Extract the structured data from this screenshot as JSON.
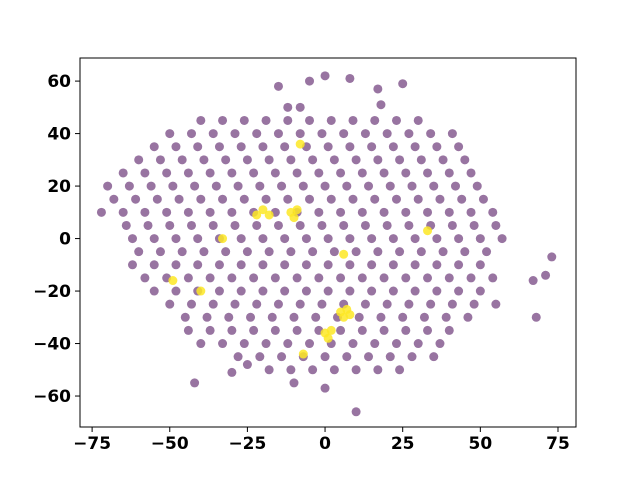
{
  "chart_data": {
    "type": "scatter",
    "xlim": [
      -78.9,
      80.8
    ],
    "ylim": [
      -71.8,
      68.8
    ],
    "xticks": [
      {
        "value": -75,
        "label": "−75"
      },
      {
        "value": -50,
        "label": "−50"
      },
      {
        "value": -25,
        "label": "−25"
      },
      0,
      25,
      50,
      75
    ],
    "yticks": [
      {
        "value": -60,
        "label": "−60"
      },
      {
        "value": -40,
        "label": "−40"
      },
      {
        "value": -20,
        "label": "−20"
      },
      0,
      20,
      40,
      60
    ],
    "series": [
      {
        "color": "#440154",
        "alpha": 0.55,
        "x": [
          -40,
          -33,
          -26,
          -19,
          -12,
          -5,
          2,
          9,
          16,
          23,
          30,
          -50,
          -43,
          -36,
          -29,
          -22,
          -15,
          -8,
          -1,
          6,
          13,
          20,
          27,
          34,
          41,
          -55,
          -48,
          -41,
          -34,
          -27,
          -20,
          -13,
          -6,
          1,
          8,
          15,
          22,
          29,
          36,
          43,
          -60,
          -53,
          -46,
          -39,
          -32,
          -25,
          -18,
          -11,
          -4,
          3,
          10,
          17,
          24,
          31,
          38,
          45,
          -65,
          -58,
          -51,
          -44,
          -37,
          -30,
          -23,
          -16,
          -9,
          -2,
          5,
          12,
          19,
          26,
          33,
          40,
          47,
          -70,
          -63,
          -56,
          -49,
          -42,
          -35,
          -28,
          -21,
          -14,
          -7,
          0,
          7,
          14,
          21,
          28,
          35,
          42,
          49,
          -68,
          -61,
          -54,
          -47,
          -40,
          -33,
          -26,
          -19,
          -12,
          -5,
          2,
          9,
          16,
          23,
          30,
          37,
          44,
          51,
          -72,
          -65,
          -58,
          -51,
          -44,
          -37,
          -30,
          -23,
          -16,
          -9,
          -2,
          5,
          12,
          19,
          26,
          33,
          40,
          47,
          54,
          -64,
          -57,
          -50,
          -43,
          -36,
          -29,
          -22,
          -15,
          -8,
          -1,
          6,
          13,
          20,
          27,
          34,
          41,
          48,
          55,
          -62,
          -55,
          -48,
          -41,
          -34,
          -27,
          -20,
          -13,
          -6,
          1,
          8,
          15,
          22,
          29,
          36,
          43,
          50,
          57,
          -60,
          -53,
          -46,
          -39,
          -32,
          -25,
          -18,
          -11,
          -4,
          3,
          10,
          17,
          24,
          31,
          38,
          45,
          52,
          -62,
          -55,
          -48,
          -41,
          -34,
          -27,
          -20,
          -13,
          -6,
          1,
          8,
          15,
          22,
          29,
          36,
          43,
          50,
          -58,
          -51,
          -44,
          -37,
          -30,
          -23,
          -16,
          -9,
          -2,
          5,
          12,
          19,
          26,
          33,
          40,
          47,
          54,
          -55,
          -48,
          -41,
          -34,
          -27,
          -20,
          -13,
          -6,
          1,
          8,
          15,
          22,
          29,
          36,
          43,
          50,
          -50,
          -43,
          -36,
          -29,
          -22,
          -15,
          -8,
          -1,
          6,
          13,
          20,
          27,
          34,
          41,
          48,
          55,
          -45,
          -38,
          -31,
          -24,
          -17,
          -10,
          -3,
          4,
          11,
          18,
          25,
          32,
          39,
          46,
          -44,
          -37,
          -30,
          -23,
          -16,
          -9,
          -2,
          5,
          12,
          19,
          26,
          33,
          40,
          -40,
          -33,
          -26,
          -19,
          -12,
          -5,
          2,
          9,
          16,
          23,
          30,
          37,
          -28,
          -21,
          -14,
          -7,
          0,
          7,
          14,
          21,
          28,
          35,
          -18,
          -11,
          -4,
          3,
          10,
          17,
          24,
          -12,
          -8,
          18,
          -15,
          0,
          -5,
          8,
          25,
          17,
          73,
          71,
          68,
          67,
          10,
          -42,
          -30,
          -10,
          0,
          -25
        ],
        "values": [
          45,
          45,
          45,
          45,
          45,
          45,
          45,
          45,
          45,
          45,
          45,
          40,
          40,
          40,
          40,
          40,
          40,
          40,
          40,
          40,
          40,
          40,
          40,
          40,
          40,
          35,
          35,
          35,
          35,
          35,
          35,
          35,
          35,
          35,
          35,
          35,
          35,
          35,
          35,
          35,
          30,
          30,
          30,
          30,
          30,
          30,
          30,
          30,
          30,
          30,
          30,
          30,
          30,
          30,
          30,
          30,
          25,
          25,
          25,
          25,
          25,
          25,
          25,
          25,
          25,
          25,
          25,
          25,
          25,
          25,
          25,
          25,
          25,
          20,
          20,
          20,
          20,
          20,
          20,
          20,
          20,
          20,
          20,
          20,
          20,
          20,
          20,
          20,
          20,
          20,
          20,
          15,
          15,
          15,
          15,
          15,
          15,
          15,
          15,
          15,
          15,
          15,
          15,
          15,
          15,
          15,
          15,
          15,
          15,
          10,
          10,
          10,
          10,
          10,
          10,
          10,
          10,
          10,
          10,
          10,
          10,
          10,
          10,
          10,
          10,
          10,
          10,
          10,
          5,
          5,
          5,
          5,
          5,
          5,
          5,
          5,
          5,
          5,
          5,
          5,
          5,
          5,
          5,
          5,
          5,
          5,
          0,
          0,
          0,
          0,
          0,
          0,
          0,
          0,
          0,
          0,
          0,
          0,
          0,
          0,
          0,
          0,
          0,
          0,
          -5,
          -5,
          -5,
          -5,
          -5,
          -5,
          -5,
          -5,
          -5,
          -5,
          -5,
          -5,
          -5,
          -5,
          -5,
          -5,
          -5,
          -10,
          -10,
          -10,
          -10,
          -10,
          -10,
          -10,
          -10,
          -10,
          -10,
          -10,
          -10,
          -10,
          -10,
          -10,
          -10,
          -10,
          -15,
          -15,
          -15,
          -15,
          -15,
          -15,
          -15,
          -15,
          -15,
          -15,
          -15,
          -15,
          -15,
          -15,
          -15,
          -15,
          -15,
          -20,
          -20,
          -20,
          -20,
          -20,
          -20,
          -20,
          -20,
          -20,
          -20,
          -20,
          -20,
          -20,
          -20,
          -20,
          -20,
          -25,
          -25,
          -25,
          -25,
          -25,
          -25,
          -25,
          -25,
          -25,
          -25,
          -25,
          -25,
          -25,
          -25,
          -25,
          -25,
          -30,
          -30,
          -30,
          -30,
          -30,
          -30,
          -30,
          -30,
          -30,
          -30,
          -30,
          -30,
          -30,
          -30,
          -35,
          -35,
          -35,
          -35,
          -35,
          -35,
          -35,
          -35,
          -35,
          -35,
          -35,
          -35,
          -35,
          -40,
          -40,
          -40,
          -40,
          -40,
          -40,
          -40,
          -40,
          -40,
          -40,
          -40,
          -40,
          -45,
          -45,
          -45,
          -45,
          -45,
          -45,
          -45,
          -45,
          -45,
          -45,
          -50,
          -50,
          -50,
          -50,
          -50,
          -50,
          -50,
          50,
          50,
          51,
          58,
          62,
          60,
          61,
          59,
          57,
          -7,
          -14,
          -30,
          -16,
          -66,
          -55,
          -51,
          -55,
          -57,
          -48
        ]
      },
      {
        "color": "#fde725",
        "alpha": 0.85,
        "x": [
          -20,
          -18,
          -11,
          -10,
          -9,
          5,
          6,
          7,
          8,
          0,
          1,
          2,
          -49,
          -40,
          -7,
          -22,
          -33,
          6,
          33,
          -8
        ],
        "values": [
          11,
          9,
          10,
          8,
          11,
          -28,
          -30,
          -27,
          -29,
          -36,
          -38,
          -35,
          -16,
          -20,
          -44,
          9,
          0,
          -6,
          3,
          36
        ]
      }
    ]
  }
}
